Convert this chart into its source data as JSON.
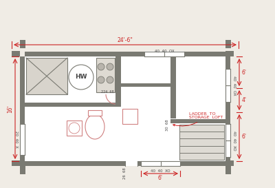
{
  "bg_color": "#f0ece5",
  "wall_color": "#7a7a72",
  "dim_color": "#cc2222",
  "text_color": "#444444",
  "pink_color": "#d08080",
  "label_window_top": "40  40  OX",
  "label_window_right_top": "40  40  OX",
  "label_window_right_bot": "40  40  XO",
  "label_window_left": "20  40  X",
  "label_window_bottom": "40  40  XO",
  "label_door_bottom": "26  68",
  "label_door_interior": "224  68",
  "label_door_right": "30  68",
  "label_ladder": "LADDER  TO\nSTORAGE  LOFT",
  "label_hw": "HW",
  "dim_width": "24'-6\"",
  "dim_left": "16'",
  "dim_right_top": "6'",
  "dim_right_mid": "4'",
  "dim_right_bot": "6'",
  "dim_bottom": "6'"
}
